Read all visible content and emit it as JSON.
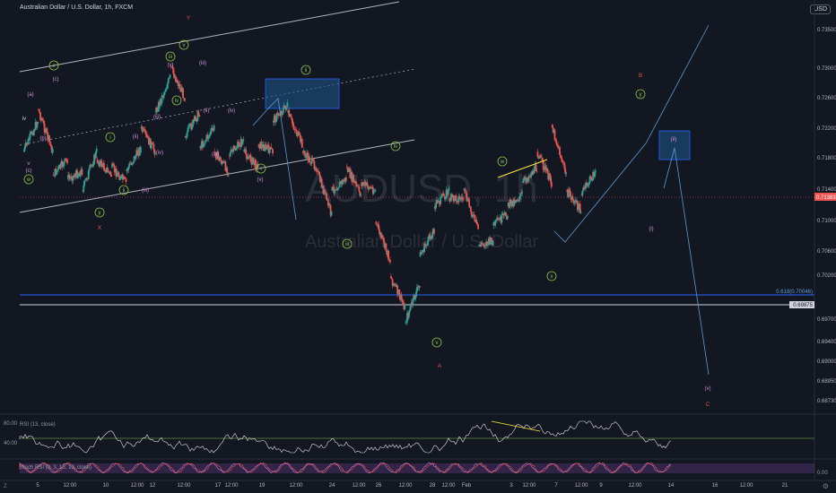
{
  "header": {
    "title": "Australian Dollar / U.S. Dollar, 1h, FXCM",
    "currency": "USD"
  },
  "watermark": {
    "symbol": "AUDUSD, 1h",
    "name": "Australian Dollar / U.S. Dollar"
  },
  "footer": {
    "z_button": "Z",
    "settings_icon": "gear-icon"
  },
  "colors": {
    "background": "#131722",
    "up": "#26a69a",
    "down": "#ef5350",
    "wave_green": "#8bc34a",
    "wave_purple": "#ce93d8",
    "wave_red": "#ef5350",
    "projection": "#5b9bd5",
    "box": "#1e5a8e",
    "rsi": "#e0e0e0",
    "stoch_band": "#6a3d8a"
  },
  "chart_data": {
    "type": "candlestick",
    "symbol": "AUDUSD",
    "timeframe": "1h",
    "y_axis": {
      "ticks": [
        "0.73500",
        "0.73000",
        "0.72600",
        "0.72200",
        "0.71800",
        "0.71400",
        "0.71000",
        "0.70600",
        "0.70200",
        "0.69700",
        "0.69400",
        "0.69000",
        "0.68950",
        "0.68730"
      ],
      "ylim": [
        0.6865,
        0.7372
      ]
    },
    "x_axis": {
      "ticks": [
        "5",
        "12:00",
        "10",
        "12:00",
        "12",
        "12:00",
        "17",
        "12:00",
        "19",
        "12:00",
        "24",
        "12:00",
        "26",
        "12:00",
        "28",
        "12:00",
        "Feb",
        "3",
        "12:00",
        "7",
        "12:00",
        "9",
        "12:00",
        "14",
        "16",
        "12:00",
        "21"
      ]
    },
    "price_path": [
      [
        0.7195,
        0.72
      ],
      [
        0.724,
        0.7255
      ],
      [
        0.72,
        0.717
      ],
      [
        0.719,
        0.7165
      ],
      [
        0.7175,
        0.715
      ],
      [
        0.72,
        0.719
      ],
      [
        0.717,
        0.718
      ],
      [
        0.716,
        0.7175
      ],
      [
        0.7205,
        0.723
      ],
      [
        0.72,
        0.725
      ],
      [
        0.7295,
        0.731
      ],
      [
        0.727,
        0.722
      ],
      [
        0.725,
        0.7205
      ],
      [
        0.723,
        0.72
      ],
      [
        0.7175,
        0.7195
      ],
      [
        0.7215,
        0.72
      ],
      [
        0.718,
        0.721
      ],
      [
        0.72,
        0.724
      ],
      [
        0.726,
        0.725
      ],
      [
        0.721,
        0.72
      ],
      [
        0.718,
        0.7175
      ],
      [
        0.712,
        0.715
      ],
      [
        0.7165,
        0.718
      ],
      [
        0.7145,
        0.716
      ],
      [
        0.715,
        0.711
      ],
      [
        0.706,
        0.704
      ],
      [
        0.7,
        0.698
      ],
      [
        0.703,
        0.7065
      ],
      [
        0.71,
        0.713
      ],
      [
        0.715,
        0.714
      ],
      [
        0.714,
        0.715
      ],
      [
        0.71,
        0.708
      ],
      [
        0.7085,
        0.7105
      ],
      [
        0.712,
        0.713
      ],
      [
        0.7145,
        0.716
      ],
      [
        0.718,
        0.72
      ],
      [
        0.716,
        0.7235
      ],
      [
        0.717,
        0.715
      ],
      [
        0.7125,
        0.7145
      ],
      [
        0.7175,
        0.715
      ]
    ],
    "last_price": "0.71383",
    "levels": [
      {
        "label": "0.618(0.70046)",
        "value": 0.70046
      },
      {
        "label": "0.69875",
        "value": 0.69875
      }
    ],
    "wave_labels": [
      {
        "text": "iv",
        "x": 0.003,
        "y": 0.7232,
        "color": "white"
      },
      {
        "text": "v",
        "x": 0.01,
        "y": 0.7178,
        "color": "wave_purple"
      },
      {
        "text": "(c)",
        "x": 0.01,
        "y": 0.7171,
        "color": "wave_purple"
      },
      {
        "text": "w",
        "x": 0.01,
        "y": 0.7159,
        "color": "wave_green"
      },
      {
        "text": "(a)",
        "x": 0.013,
        "y": 0.7258,
        "color": "wave_purple"
      },
      {
        "text": "x",
        "x": 0.044,
        "y": 0.7308,
        "color": "wave_green"
      },
      {
        "text": "(c)",
        "x": 0.044,
        "y": 0.729,
        "color": "wave_purple"
      },
      {
        "text": "(b)",
        "x": 0.033,
        "y": 0.7208,
        "color": "wave_purple"
      },
      {
        "text": "y",
        "x": 0.112,
        "y": 0.711,
        "color": "wave_green"
      },
      {
        "text": "X",
        "x": 0.112,
        "y": 0.708,
        "color": "wave_red"
      },
      {
        "text": "i",
        "x": 0.127,
        "y": 0.721,
        "color": "wave_green"
      },
      {
        "text": "ii",
        "x": 0.141,
        "y": 0.7138,
        "color": "wave_green"
      },
      {
        "text": "(ii)",
        "x": 0.154,
        "y": 0.721,
        "color": "wave_purple"
      },
      {
        "text": "(iii)",
        "x": 0.17,
        "y": 0.714,
        "color": "wave_purple"
      },
      {
        "text": "(iii)",
        "x": 0.183,
        "y": 0.7236,
        "color": "wave_purple"
      },
      {
        "text": "(iv)",
        "x": 0.189,
        "y": 0.7188,
        "color": "wave_purple"
      },
      {
        "text": "iii",
        "x": 0.198,
        "y": 0.7318,
        "color": "wave_green"
      },
      {
        "text": "(v)",
        "x": 0.198,
        "y": 0.7298,
        "color": "wave_purple"
      },
      {
        "text": "iv",
        "x": 0.207,
        "y": 0.7248,
        "color": "wave_green"
      },
      {
        "text": "Y",
        "x": 0.213,
        "y": 0.7366,
        "color": "wave_red"
      },
      {
        "text": "v",
        "x": 0.213,
        "y": 0.7335,
        "color": "wave_green"
      },
      {
        "text": "(iii)",
        "x": 0.237,
        "y": 0.731,
        "color": "wave_purple"
      },
      {
        "text": "(ii)",
        "x": 0.237,
        "y": 0.724,
        "color": "wave_purple"
      },
      {
        "text": "(iii)",
        "x": 0.25,
        "y": 0.7183,
        "color": "wave_purple"
      },
      {
        "text": "(iv)",
        "x": 0.265,
        "y": 0.7238,
        "color": "wave_purple"
      },
      {
        "text": "(v)",
        "x": 0.298,
        "y": 0.7157,
        "color": "wave_purple"
      },
      {
        "text": "i",
        "x": 0.298,
        "y": 0.7145,
        "color": "wave_green"
      },
      {
        "text": "ii",
        "x": 0.352,
        "y": 0.7297,
        "color": "wave_green"
      },
      {
        "text": "iii",
        "x": 0.397,
        "y": 0.7085,
        "color": "wave_green"
      },
      {
        "text": "iv",
        "x": 0.452,
        "y": 0.7193,
        "color": "wave_green"
      },
      {
        "text": "v",
        "x": 0.5,
        "y": 0.6952,
        "color": "wave_green"
      },
      {
        "text": "A",
        "x": 0.5,
        "y": 0.692,
        "color": "wave_red"
      },
      {
        "text": "w",
        "x": 0.574,
        "y": 0.7178,
        "color": "wave_green"
      },
      {
        "text": "x",
        "x": 0.63,
        "y": 0.7031,
        "color": "wave_green"
      },
      {
        "text": "B",
        "x": 0.735,
        "y": 0.7296,
        "color": "wave_red"
      },
      {
        "text": "y",
        "x": 0.735,
        "y": 0.7268,
        "color": "wave_green"
      },
      {
        "text": "(i)",
        "x": 0.745,
        "y": 0.709,
        "color": "wave_purple"
      },
      {
        "text": "(ii)",
        "x": 0.775,
        "y": 0.7192,
        "color": "wave_purple"
      },
      {
        "text": "(v)",
        "x": 0.81,
        "y": 0.6881,
        "color": "wave_purple"
      },
      {
        "text": "C",
        "x": 0.81,
        "y": 0.6863,
        "color": "wave_red"
      }
    ],
    "indicators": [
      {
        "name": "RSI (13, close)",
        "ticks": [
          "80.00",
          "40.00"
        ]
      },
      {
        "name": "Stoch RSI (3, 3, 13, 13, close)",
        "ticks": [
          "0.00"
        ]
      }
    ]
  }
}
